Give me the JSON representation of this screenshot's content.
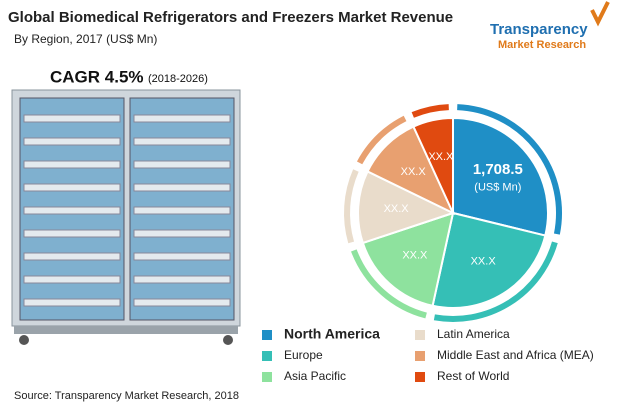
{
  "header": {
    "title": "Global Biomedical Refrigerators and Freezers Market Revenue",
    "subtitle": "By Region, 2017 (US$ Mn)"
  },
  "logo": {
    "name": "Transparency",
    "line2": "Market Research"
  },
  "cagr": {
    "text": "CAGR 4.5%",
    "period": "(2018-2026)"
  },
  "chart_data": {
    "type": "pie",
    "categories": [
      "North America",
      "Europe",
      "Asia Pacific",
      "Latin America",
      "Middle East and Africa (MEA)",
      "Rest of World"
    ],
    "values": [
      1708.5,
      1460,
      975,
      730,
      650,
      405
    ],
    "value_labels": [
      "1,708.5",
      "XX.X",
      "XX.X",
      "XX.X",
      "XX.X",
      "XX.X"
    ],
    "unit_label": "(US$ Mn)",
    "colors": [
      "#1f8fc6",
      "#35bfb6",
      "#8ee29e",
      "#e9dccb",
      "#e8a070",
      "#e04a10"
    ]
  },
  "source": "Source: Transparency Market Research, 2018"
}
